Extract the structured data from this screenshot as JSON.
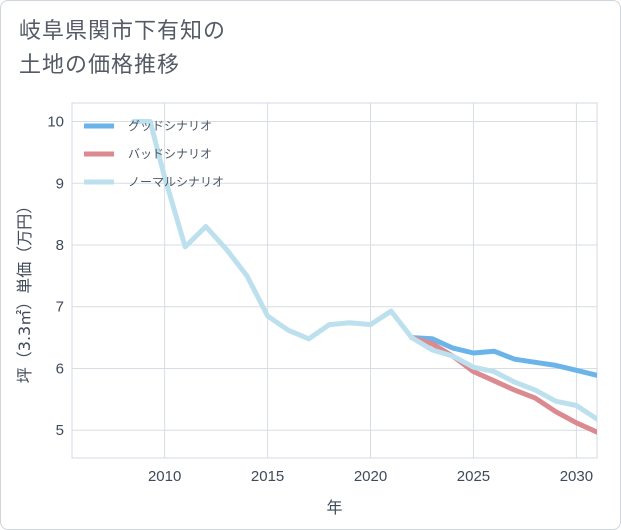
{
  "title_line1": "岐阜県関市下有知の",
  "title_line2": "土地の価格推移",
  "chart_data": {
    "type": "line",
    "xlabel": "年",
    "ylabel": "坪（3.3㎡）単価（万円）",
    "xlim": [
      2005.5,
      2031
    ],
    "ylim": [
      4.55,
      10.3
    ],
    "xticks": [
      2010,
      2015,
      2020,
      2025,
      2030
    ],
    "yticks": [
      5,
      6,
      7,
      8,
      9,
      10
    ],
    "grid": true,
    "legend_position": "top-left",
    "series": [
      {
        "name": "グッドシナリオ",
        "color": "#6ab4ea",
        "x": [
          2022,
          2023,
          2024,
          2025,
          2026,
          2027,
          2028,
          2029,
          2030,
          2031
        ],
        "y": [
          6.5,
          6.48,
          6.33,
          6.25,
          6.28,
          6.15,
          6.1,
          6.05,
          5.97,
          5.89
        ]
      },
      {
        "name": "バッドシナリオ",
        "color": "#db8a90",
        "x": [
          2022,
          2023,
          2024,
          2025,
          2026,
          2027,
          2028,
          2029,
          2030,
          2031
        ],
        "y": [
          6.5,
          6.4,
          6.2,
          5.95,
          5.8,
          5.65,
          5.52,
          5.3,
          5.12,
          4.97
        ]
      },
      {
        "name": "ノーマルシナリオ",
        "color": "#bde0ee",
        "x": [
          2008.5,
          2009.3,
          2010,
          2011,
          2012,
          2013,
          2014,
          2015,
          2016,
          2017,
          2018,
          2019,
          2020,
          2021,
          2022,
          2023,
          2024,
          2025,
          2026,
          2027,
          2028,
          2029,
          2030,
          2031
        ],
        "y": [
          10.0,
          10.0,
          9.1,
          7.97,
          8.3,
          7.93,
          7.5,
          6.85,
          6.62,
          6.48,
          6.71,
          6.74,
          6.71,
          6.93,
          6.5,
          6.3,
          6.2,
          6.02,
          5.95,
          5.78,
          5.65,
          5.47,
          5.4,
          5.18
        ]
      }
    ]
  }
}
